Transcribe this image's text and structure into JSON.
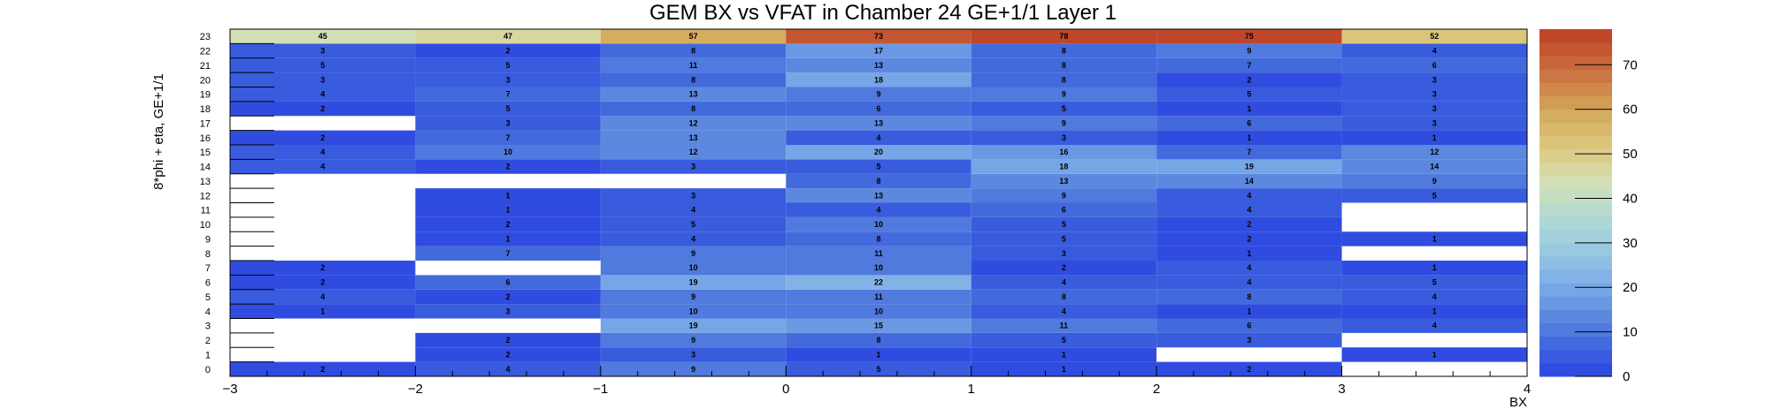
{
  "chart_data": {
    "type": "heatmap",
    "title": "GEM BX vs VFAT in Chamber 24 GE+1/1 Layer 1",
    "xlabel": "BX",
    "ylabel": "8*phi + eta, GE+1/1",
    "xlim": [
      -3,
      4
    ],
    "ylim": [
      0,
      24
    ],
    "x_ticks": [
      "−3",
      "−2",
      "−1",
      "0",
      "1",
      "2",
      "3",
      "4"
    ],
    "y_categories": [
      "0",
      "1",
      "2",
      "3",
      "4",
      "5",
      "6",
      "7",
      "8",
      "9",
      "10",
      "11",
      "12",
      "13",
      "14",
      "15",
      "16",
      "17",
      "18",
      "19",
      "20",
      "21",
      "22",
      "23"
    ],
    "x_bins": [
      [
        -3,
        -2
      ],
      [
        -2,
        -1
      ],
      [
        -1,
        0
      ],
      [
        0,
        1
      ],
      [
        1,
        2
      ],
      [
        2,
        3
      ],
      [
        3,
        4
      ]
    ],
    "colorbar": {
      "min": 0,
      "max": 78,
      "ticks": [
        "0",
        "10",
        "20",
        "30",
        "40",
        "50",
        "60",
        "70"
      ]
    },
    "cells": [
      {
        "x": -2.5,
        "y": 0,
        "v": 2
      },
      {
        "x": -1.5,
        "y": 0,
        "v": 4
      },
      {
        "x": -0.5,
        "y": 0,
        "v": 9
      },
      {
        "x": 0.5,
        "y": 0,
        "v": 5
      },
      {
        "x": 1.5,
        "y": 0,
        "v": 1
      },
      {
        "x": 2.5,
        "y": 0,
        "v": 2
      },
      {
        "x": -1.5,
        "y": 1,
        "v": 2
      },
      {
        "x": -0.5,
        "y": 1,
        "v": 3
      },
      {
        "x": 0.5,
        "y": 1,
        "v": 1
      },
      {
        "x": 1.5,
        "y": 1,
        "v": 1
      },
      {
        "x": 3.5,
        "y": 1,
        "v": 1
      },
      {
        "x": -1.5,
        "y": 2,
        "v": 2
      },
      {
        "x": -0.5,
        "y": 2,
        "v": 9
      },
      {
        "x": 0.5,
        "y": 2,
        "v": 8
      },
      {
        "x": 1.5,
        "y": 2,
        "v": 5
      },
      {
        "x": 2.5,
        "y": 2,
        "v": 3
      },
      {
        "x": -0.5,
        "y": 3,
        "v": 19
      },
      {
        "x": 0.5,
        "y": 3,
        "v": 15
      },
      {
        "x": 1.5,
        "y": 3,
        "v": 11
      },
      {
        "x": 2.5,
        "y": 3,
        "v": 6
      },
      {
        "x": 3.5,
        "y": 3,
        "v": 4
      },
      {
        "x": -2.5,
        "y": 4,
        "v": 1
      },
      {
        "x": -1.5,
        "y": 4,
        "v": 3
      },
      {
        "x": -0.5,
        "y": 4,
        "v": 10
      },
      {
        "x": 0.5,
        "y": 4,
        "v": 10
      },
      {
        "x": 1.5,
        "y": 4,
        "v": 4
      },
      {
        "x": 2.5,
        "y": 4,
        "v": 1
      },
      {
        "x": 3.5,
        "y": 4,
        "v": 1
      },
      {
        "x": -2.5,
        "y": 5,
        "v": 4
      },
      {
        "x": -1.5,
        "y": 5,
        "v": 2
      },
      {
        "x": -0.5,
        "y": 5,
        "v": 9
      },
      {
        "x": 0.5,
        "y": 5,
        "v": 11
      },
      {
        "x": 1.5,
        "y": 5,
        "v": 8
      },
      {
        "x": 2.5,
        "y": 5,
        "v": 8
      },
      {
        "x": 3.5,
        "y": 5,
        "v": 4
      },
      {
        "x": -2.5,
        "y": 6,
        "v": 2
      },
      {
        "x": -1.5,
        "y": 6,
        "v": 6
      },
      {
        "x": -0.5,
        "y": 6,
        "v": 19
      },
      {
        "x": 0.5,
        "y": 6,
        "v": 22
      },
      {
        "x": 1.5,
        "y": 6,
        "v": 4
      },
      {
        "x": 2.5,
        "y": 6,
        "v": 4
      },
      {
        "x": 3.5,
        "y": 6,
        "v": 5
      },
      {
        "x": -2.5,
        "y": 7,
        "v": 2
      },
      {
        "x": -0.5,
        "y": 7,
        "v": 10
      },
      {
        "x": 0.5,
        "y": 7,
        "v": 10
      },
      {
        "x": 1.5,
        "y": 7,
        "v": 2
      },
      {
        "x": 2.5,
        "y": 7,
        "v": 4
      },
      {
        "x": 3.5,
        "y": 7,
        "v": 1
      },
      {
        "x": -1.5,
        "y": 8,
        "v": 7
      },
      {
        "x": -0.5,
        "y": 8,
        "v": 9
      },
      {
        "x": 0.5,
        "y": 8,
        "v": 11
      },
      {
        "x": 1.5,
        "y": 8,
        "v": 3
      },
      {
        "x": 2.5,
        "y": 8,
        "v": 1
      },
      {
        "x": -1.5,
        "y": 9,
        "v": 1
      },
      {
        "x": -0.5,
        "y": 9,
        "v": 4
      },
      {
        "x": 0.5,
        "y": 9,
        "v": 8
      },
      {
        "x": 1.5,
        "y": 9,
        "v": 5
      },
      {
        "x": 2.5,
        "y": 9,
        "v": 2
      },
      {
        "x": 3.5,
        "y": 9,
        "v": 1
      },
      {
        "x": -1.5,
        "y": 10,
        "v": 2
      },
      {
        "x": -0.5,
        "y": 10,
        "v": 5
      },
      {
        "x": 0.5,
        "y": 10,
        "v": 10
      },
      {
        "x": 1.5,
        "y": 10,
        "v": 5
      },
      {
        "x": 2.5,
        "y": 10,
        "v": 2
      },
      {
        "x": -1.5,
        "y": 11,
        "v": 1
      },
      {
        "x": -0.5,
        "y": 11,
        "v": 4
      },
      {
        "x": 0.5,
        "y": 11,
        "v": 4
      },
      {
        "x": 1.5,
        "y": 11,
        "v": 6
      },
      {
        "x": 2.5,
        "y": 11,
        "v": 4
      },
      {
        "x": -1.5,
        "y": 12,
        "v": 1
      },
      {
        "x": -0.5,
        "y": 12,
        "v": 3
      },
      {
        "x": 0.5,
        "y": 12,
        "v": 13
      },
      {
        "x": 1.5,
        "y": 12,
        "v": 9
      },
      {
        "x": 2.5,
        "y": 12,
        "v": 4
      },
      {
        "x": 3.5,
        "y": 12,
        "v": 5
      },
      {
        "x": 0.5,
        "y": 13,
        "v": 8
      },
      {
        "x": 1.5,
        "y": 13,
        "v": 13
      },
      {
        "x": 2.5,
        "y": 13,
        "v": 14
      },
      {
        "x": 3.5,
        "y": 13,
        "v": 9
      },
      {
        "x": -2.5,
        "y": 14,
        "v": 4
      },
      {
        "x": -1.5,
        "y": 14,
        "v": 2
      },
      {
        "x": -0.5,
        "y": 14,
        "v": 3
      },
      {
        "x": 0.5,
        "y": 14,
        "v": 5
      },
      {
        "x": 1.5,
        "y": 14,
        "v": 18
      },
      {
        "x": 2.5,
        "y": 14,
        "v": 19
      },
      {
        "x": 3.5,
        "y": 14,
        "v": 14
      },
      {
        "x": -2.5,
        "y": 15,
        "v": 4
      },
      {
        "x": -1.5,
        "y": 15,
        "v": 10
      },
      {
        "x": -0.5,
        "y": 15,
        "v": 12
      },
      {
        "x": 0.5,
        "y": 15,
        "v": 20
      },
      {
        "x": 1.5,
        "y": 15,
        "v": 16
      },
      {
        "x": 2.5,
        "y": 15,
        "v": 7
      },
      {
        "x": 3.5,
        "y": 15,
        "v": 12
      },
      {
        "x": -2.5,
        "y": 16,
        "v": 2
      },
      {
        "x": -1.5,
        "y": 16,
        "v": 7
      },
      {
        "x": -0.5,
        "y": 16,
        "v": 13
      },
      {
        "x": 0.5,
        "y": 16,
        "v": 4
      },
      {
        "x": 1.5,
        "y": 16,
        "v": 3
      },
      {
        "x": 2.5,
        "y": 16,
        "v": 1
      },
      {
        "x": 3.5,
        "y": 16,
        "v": 1
      },
      {
        "x": -1.5,
        "y": 17,
        "v": 3
      },
      {
        "x": -0.5,
        "y": 17,
        "v": 12
      },
      {
        "x": 0.5,
        "y": 17,
        "v": 13
      },
      {
        "x": 1.5,
        "y": 17,
        "v": 9
      },
      {
        "x": 2.5,
        "y": 17,
        "v": 6
      },
      {
        "x": 3.5,
        "y": 17,
        "v": 3
      },
      {
        "x": -2.5,
        "y": 18,
        "v": 2
      },
      {
        "x": -1.5,
        "y": 18,
        "v": 5
      },
      {
        "x": -0.5,
        "y": 18,
        "v": 8
      },
      {
        "x": 0.5,
        "y": 18,
        "v": 6
      },
      {
        "x": 1.5,
        "y": 18,
        "v": 5
      },
      {
        "x": 2.5,
        "y": 18,
        "v": 1
      },
      {
        "x": 3.5,
        "y": 18,
        "v": 3
      },
      {
        "x": -2.5,
        "y": 19,
        "v": 4
      },
      {
        "x": -1.5,
        "y": 19,
        "v": 7
      },
      {
        "x": -0.5,
        "y": 19,
        "v": 13
      },
      {
        "x": 0.5,
        "y": 19,
        "v": 9
      },
      {
        "x": 1.5,
        "y": 19,
        "v": 9
      },
      {
        "x": 2.5,
        "y": 19,
        "v": 5
      },
      {
        "x": 3.5,
        "y": 19,
        "v": 3
      },
      {
        "x": -2.5,
        "y": 20,
        "v": 3
      },
      {
        "x": -1.5,
        "y": 20,
        "v": 3
      },
      {
        "x": -0.5,
        "y": 20,
        "v": 8
      },
      {
        "x": 0.5,
        "y": 20,
        "v": 18
      },
      {
        "x": 1.5,
        "y": 20,
        "v": 8
      },
      {
        "x": 2.5,
        "y": 20,
        "v": 2
      },
      {
        "x": 3.5,
        "y": 20,
        "v": 3
      },
      {
        "x": -2.5,
        "y": 21,
        "v": 5
      },
      {
        "x": -1.5,
        "y": 21,
        "v": 5
      },
      {
        "x": -0.5,
        "y": 21,
        "v": 11
      },
      {
        "x": 0.5,
        "y": 21,
        "v": 13
      },
      {
        "x": 1.5,
        "y": 21,
        "v": 8
      },
      {
        "x": 2.5,
        "y": 21,
        "v": 7
      },
      {
        "x": 3.5,
        "y": 21,
        "v": 6
      },
      {
        "x": -2.5,
        "y": 22,
        "v": 3
      },
      {
        "x": -1.5,
        "y": 22,
        "v": 2
      },
      {
        "x": -0.5,
        "y": 22,
        "v": 8
      },
      {
        "x": 0.5,
        "y": 22,
        "v": 17
      },
      {
        "x": 1.5,
        "y": 22,
        "v": 8
      },
      {
        "x": 2.5,
        "y": 22,
        "v": 9
      },
      {
        "x": 3.5,
        "y": 22,
        "v": 4
      },
      {
        "x": -2.5,
        "y": 23,
        "v": 45
      },
      {
        "x": -1.5,
        "y": 23,
        "v": 47
      },
      {
        "x": -0.5,
        "y": 23,
        "v": 57
      },
      {
        "x": 0.5,
        "y": 23,
        "v": 73
      },
      {
        "x": 1.5,
        "y": 23,
        "v": 78
      },
      {
        "x": 2.5,
        "y": 23,
        "v": 75
      },
      {
        "x": 3.5,
        "y": 23,
        "v": 52
      }
    ]
  }
}
